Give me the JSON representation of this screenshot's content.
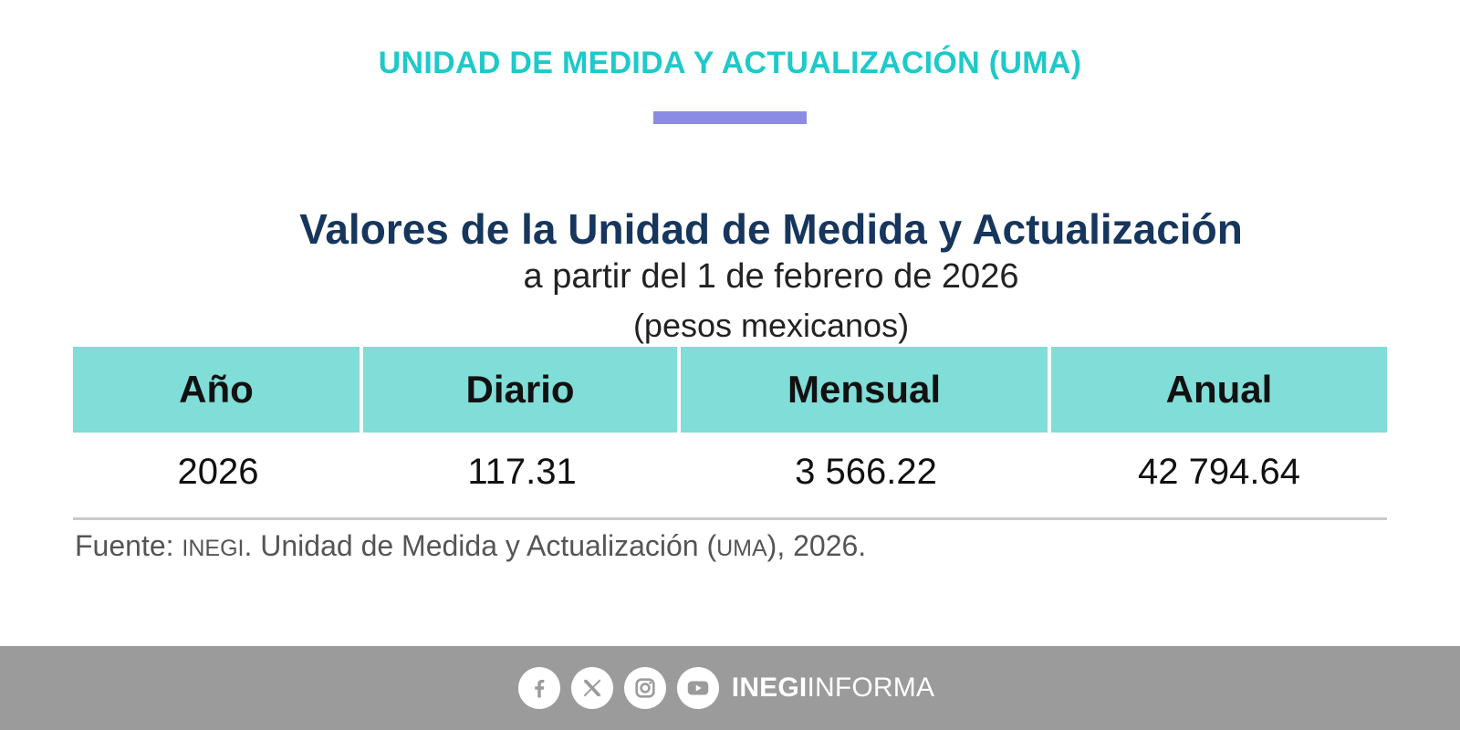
{
  "banner": {
    "title": "UNIDAD DE MEDIDA Y ACTUALIZACIÓN (UMA)",
    "accent_color": "#8b8be6",
    "title_color": "#1ec9c9"
  },
  "table": {
    "title": "Valores de la Unidad de Medida y Actualización",
    "subtitle": "a partir del 1 de febrero de 2026",
    "unit": "(pesos mexicanos)",
    "header_color": "#80ddd8",
    "columns": [
      "Año",
      "Diario",
      "Mensual",
      "Anual"
    ],
    "rows": [
      [
        "2026",
        "117.31",
        "3 566.22",
        "42 794.64"
      ]
    ]
  },
  "source": {
    "label": "Fuente:",
    "org": "INEGI",
    "text": ". Unidad de Medida y Actualización (",
    "abbr": "UMA",
    "tail": "), 2026."
  },
  "footer": {
    "icons": [
      "facebook-icon",
      "x-icon",
      "instagram-icon",
      "youtube-icon"
    ],
    "brand_bold": "INEGI",
    "brand_light": "INFORMA",
    "background": "#9b9b9b"
  }
}
